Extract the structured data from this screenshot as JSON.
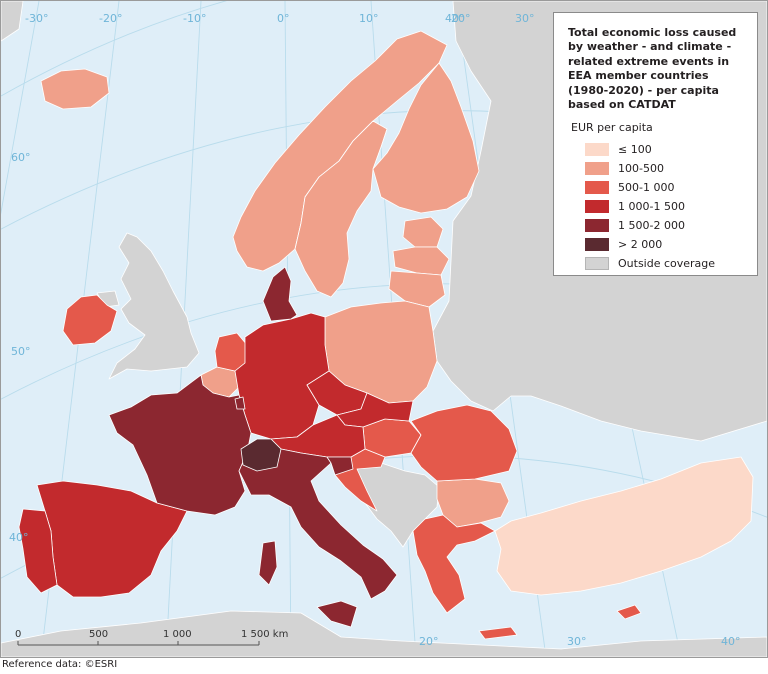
{
  "map": {
    "title": "Total economic loss caused by weather - and climate - related extreme events in EEA member countries (1980-2020) - per capita based on CATDAT",
    "legend": {
      "subtitle": "EUR per capita",
      "classes": [
        {
          "label": "≤ 100",
          "color": "#fcd9c9"
        },
        {
          "label": "100-500",
          "color": "#f0a08a"
        },
        {
          "label": "500-1 000",
          "color": "#e4594b"
        },
        {
          "label": "1 000-1 500",
          "color": "#c22a2d"
        },
        {
          "label": "1 500-2 000",
          "color": "#8c2730"
        },
        {
          "label": "> 2 000",
          "color": "#5a2a30"
        },
        {
          "label": "Outside coverage",
          "color": "#d3d3d3"
        }
      ]
    },
    "colors": {
      "sea": "#dfeef8",
      "outside_coverage": "#d3d3d3",
      "graticule": "#b9dcec",
      "graticule_label": "#6fb5d8"
    },
    "graticule_labels": {
      "longitude_top": [
        "-30°",
        "-20°",
        "-10°",
        "0°",
        "10°",
        "20°",
        "30°",
        "40°"
      ],
      "latitude_left": [
        "60°",
        "50°",
        "40°"
      ],
      "longitude_bottom": [
        "20°",
        "30°",
        "40°"
      ]
    },
    "scale_bar": {
      "ticks": [
        "0",
        "500",
        "1 000",
        "1 500 km"
      ]
    },
    "countries": [
      {
        "name": "Iceland",
        "class": "100-500"
      },
      {
        "name": "Norway",
        "class": "100-500"
      },
      {
        "name": "Sweden",
        "class": "100-500"
      },
      {
        "name": "Finland",
        "class": "100-500"
      },
      {
        "name": "Estonia",
        "class": "100-500"
      },
      {
        "name": "Latvia",
        "class": "100-500"
      },
      {
        "name": "Lithuania",
        "class": "100-500"
      },
      {
        "name": "Poland",
        "class": "100-500"
      },
      {
        "name": "Belgium",
        "class": "100-500"
      },
      {
        "name": "Bulgaria",
        "class": "100-500"
      },
      {
        "name": "Ireland",
        "class": "500-1 000"
      },
      {
        "name": "Netherlands",
        "class": "500-1 000"
      },
      {
        "name": "Hungary",
        "class": "500-1 000"
      },
      {
        "name": "Romania",
        "class": "500-1 000"
      },
      {
        "name": "Greece",
        "class": "500-1 000"
      },
      {
        "name": "Cyprus",
        "class": "500-1 000"
      },
      {
        "name": "Croatia",
        "class": "500-1 000"
      },
      {
        "name": "Germany",
        "class": "1 000-1 500"
      },
      {
        "name": "Spain",
        "class": "1 000-1 500"
      },
      {
        "name": "Portugal",
        "class": "1 000-1 500"
      },
      {
        "name": "Czechia",
        "class": "1 000-1 500"
      },
      {
        "name": "Austria",
        "class": "1 000-1 500"
      },
      {
        "name": "Slovakia",
        "class": "1 000-1 500"
      },
      {
        "name": "Denmark",
        "class": "1 500-2 000"
      },
      {
        "name": "France",
        "class": "1 500-2 000"
      },
      {
        "name": "Italy",
        "class": "1 500-2 000"
      },
      {
        "name": "Slovenia",
        "class": "1 500-2 000"
      },
      {
        "name": "Luxembourg",
        "class": "1 500-2 000"
      },
      {
        "name": "Switzerland",
        "class": "> 2 000"
      },
      {
        "name": "Turkey",
        "class": "≤ 100"
      }
    ]
  },
  "footer": {
    "reference": "Reference data: ©ESRI"
  }
}
